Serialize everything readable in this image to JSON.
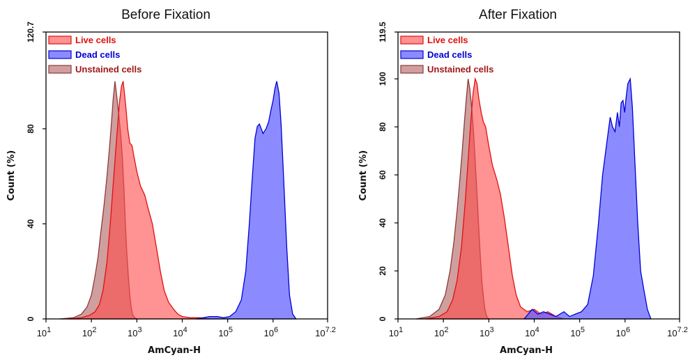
{
  "chart_data": [
    {
      "type": "area",
      "title": "Before Fixation",
      "xlabel": "AmCyan-H",
      "ylabel": "Count  (%)",
      "x_scale": "log10",
      "xlim": [
        10,
        15848932
      ],
      "ylim": [
        0,
        120.7
      ],
      "x_ticks": [
        {
          "value": 10,
          "base": "10",
          "exp": "1"
        },
        {
          "value": 100,
          "base": "10",
          "exp": "2"
        },
        {
          "value": 1000,
          "base": "10",
          "exp": "3"
        },
        {
          "value": 10000,
          "base": "10",
          "exp": "4"
        },
        {
          "value": 100000,
          "base": "10",
          "exp": "5"
        },
        {
          "value": 1000000,
          "base": "10",
          "exp": "6"
        },
        {
          "value": 15848932,
          "base": "10",
          "exp": "7.2"
        }
      ],
      "y_ticks": [
        {
          "value": 0,
          "label": "0"
        },
        {
          "value": 40,
          "label": "40"
        },
        {
          "value": 80,
          "label": "80"
        },
        {
          "value": 120.7,
          "label": "120.7"
        }
      ],
      "legend_position": "top-left",
      "series": [
        {
          "name": "Unstained cells",
          "fill": "#a85050",
          "stroke": "#8c3a3a",
          "text_color": "#a01818",
          "opacity": 0.55,
          "x": [
            20,
            40,
            60,
            80,
            100,
            120,
            140,
            160,
            190,
            220,
            250,
            280,
            300,
            330,
            360,
            400,
            440,
            480,
            520,
            560,
            600,
            650,
            700,
            750,
            800,
            900,
            1000
          ],
          "y": [
            0,
            0.5,
            2,
            5,
            10,
            18,
            26,
            36,
            48,
            60,
            72,
            84,
            92,
            100,
            94,
            86,
            78,
            68,
            55,
            40,
            28,
            18,
            10,
            5,
            2,
            0.5,
            0
          ]
        },
        {
          "name": "Live cells",
          "fill": "#ff4a4a",
          "stroke": "#e01010",
          "text_color": "#e01010",
          "opacity": 0.6,
          "x": [
            30,
            60,
            90,
            120,
            150,
            180,
            220,
            260,
            300,
            340,
            380,
            420,
            460,
            500,
            540,
            580,
            630,
            700,
            780,
            870,
            1000,
            1200,
            1500,
            1800,
            2200,
            2700,
            3300,
            4000,
            5000,
            6500,
            8000,
            10000,
            15000,
            25000,
            40000
          ],
          "y": [
            0,
            0.5,
            1.5,
            3,
            6,
            12,
            24,
            40,
            56,
            70,
            82,
            92,
            98,
            100,
            94,
            88,
            80,
            74,
            73,
            68,
            62,
            56,
            52,
            46,
            40,
            30,
            20,
            12,
            7,
            4,
            2,
            1,
            0.5,
            0.5,
            0
          ]
        },
        {
          "name": "Dead cells",
          "fill": "#5a5aff",
          "stroke": "#0000d8",
          "text_color": "#0000d8",
          "opacity": 0.7,
          "x": [
            20000,
            40000,
            60000,
            80000,
            110000,
            150000,
            200000,
            250000,
            300000,
            350000,
            400000,
            450000,
            500000,
            550000,
            600000,
            700000,
            800000,
            900000,
            1000000,
            1100000,
            1200000,
            1350000,
            1500000,
            1700000,
            2000000,
            2300000,
            2700000,
            3200000
          ],
          "y": [
            0,
            1,
            1,
            0.5,
            1,
            3,
            8,
            20,
            40,
            60,
            76,
            81,
            82,
            80,
            78,
            80,
            83,
            88,
            92,
            97,
            100,
            95,
            82,
            60,
            30,
            10,
            2,
            0
          ]
        }
      ]
    },
    {
      "type": "area",
      "title": "After Fixation",
      "xlabel": "AmCyan-H",
      "ylabel": "Count  (%)",
      "x_scale": "log10",
      "xlim": [
        10,
        15848932
      ],
      "ylim": [
        0,
        119.5
      ],
      "x_ticks": [
        {
          "value": 10,
          "base": "10",
          "exp": "1"
        },
        {
          "value": 100,
          "base": "10",
          "exp": "2"
        },
        {
          "value": 1000,
          "base": "10",
          "exp": "3"
        },
        {
          "value": 10000,
          "base": "10",
          "exp": "4"
        },
        {
          "value": 100000,
          "base": "10",
          "exp": "5"
        },
        {
          "value": 1000000,
          "base": "10",
          "exp": "6"
        },
        {
          "value": 15848932,
          "base": "10",
          "exp": "7.2"
        }
      ],
      "y_ticks": [
        {
          "value": 0,
          "label": "0"
        },
        {
          "value": 20,
          "label": "20"
        },
        {
          "value": 40,
          "label": "40"
        },
        {
          "value": 60,
          "label": "60"
        },
        {
          "value": 80,
          "label": "80"
        },
        {
          "value": 100,
          "label": "100"
        },
        {
          "value": 119.5,
          "label": "119.5"
        }
      ],
      "legend_position": "top-left",
      "series": [
        {
          "name": "Unstained cells",
          "fill": "#a85050",
          "stroke": "#8c3a3a",
          "text_color": "#a01818",
          "opacity": 0.55,
          "x": [
            25,
            50,
            80,
            110,
            140,
            170,
            200,
            230,
            260,
            290,
            320,
            350,
            380,
            420,
            460,
            500,
            550,
            600,
            650,
            700,
            760,
            820,
            900,
            1000
          ],
          "y": [
            0,
            1,
            4,
            10,
            20,
            32,
            45,
            58,
            70,
            82,
            92,
            100,
            96,
            88,
            78,
            66,
            52,
            38,
            26,
            16,
            9,
            4,
            1,
            0
          ]
        },
        {
          "name": "Live cells",
          "fill": "#ff4a4a",
          "stroke": "#e01010",
          "text_color": "#e01010",
          "opacity": 0.6,
          "x": [
            40,
            80,
            120,
            160,
            200,
            250,
            300,
            350,
            400,
            450,
            500,
            550,
            600,
            680,
            760,
            850,
            1000,
            1200,
            1500,
            1800,
            2200,
            2700,
            3300,
            4000,
            5000,
            7000,
            10000,
            14000,
            20000,
            30000,
            45000
          ],
          "y": [
            0,
            1,
            3,
            8,
            16,
            30,
            48,
            66,
            82,
            94,
            100,
            98,
            92,
            86,
            82,
            80,
            72,
            64,
            58,
            52,
            42,
            30,
            18,
            10,
            5,
            3,
            4,
            2,
            3,
            1,
            0
          ]
        },
        {
          "name": "Dead cells",
          "fill": "#5a5aff",
          "stroke": "#0000d8",
          "text_color": "#0000d8",
          "opacity": 0.7,
          "x": [
            6000,
            9000,
            12000,
            16000,
            22000,
            30000,
            45000,
            60000,
            80000,
            110000,
            150000,
            200000,
            260000,
            320000,
            400000,
            470000,
            530000,
            600000,
            680000,
            750000,
            820000,
            900000,
            980000,
            1050000,
            1150000,
            1300000,
            1450000,
            1650000,
            1900000,
            2200000,
            2600000,
            3100000,
            3700000
          ],
          "y": [
            0,
            4,
            2,
            3,
            2,
            1,
            3,
            1,
            2,
            3,
            6,
            18,
            40,
            60,
            74,
            84,
            80,
            78,
            86,
            80,
            90,
            91,
            86,
            92,
            98,
            100,
            88,
            65,
            40,
            20,
            12,
            4,
            0
          ]
        }
      ]
    }
  ]
}
